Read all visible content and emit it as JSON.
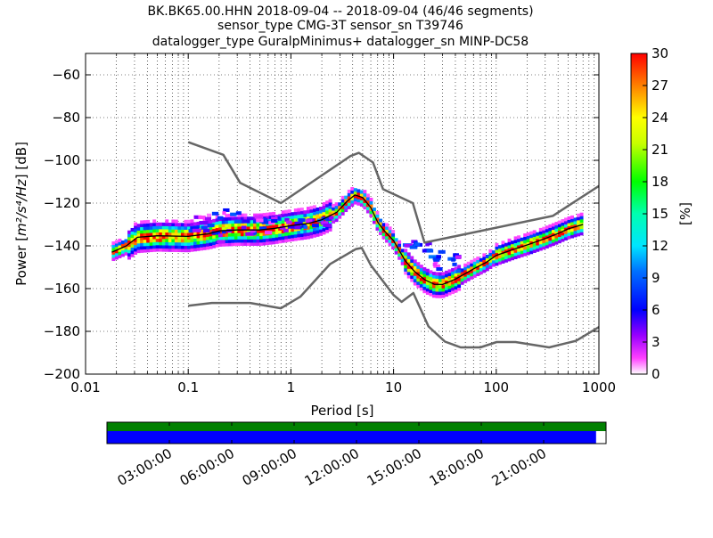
{
  "chart_data": {
    "type": "heatmap",
    "title_lines": [
      "BK.BK65.00.HHN   2018-09-04 -- 2018-09-04  (46/46 segments)",
      "sensor_type CMG-3T sensor_sn T39746",
      "datalogger_type GuralpMinimus+ datalogger_sn MINP-DC58"
    ],
    "xlabel": "Period [s]",
    "ylabel_prefix": "Power [",
    "ylabel_math": "m²/s⁴/Hz",
    "ylabel_suffix": "] [dB]",
    "x_scale": "log",
    "xlim": [
      0.01,
      1000
    ],
    "ylim": [
      -200,
      -50
    ],
    "x_ticks": [
      {
        "v": 0.01,
        "label": "0.01"
      },
      {
        "v": 0.1,
        "label": "0.1"
      },
      {
        "v": 1,
        "label": "1"
      },
      {
        "v": 10,
        "label": "10"
      },
      {
        "v": 100,
        "label": "100"
      },
      {
        "v": 1000,
        "label": "1000"
      }
    ],
    "y_ticks": [
      {
        "v": -60,
        "label": "−60"
      },
      {
        "v": -80,
        "label": "−80"
      },
      {
        "v": -100,
        "label": "−100"
      },
      {
        "v": -120,
        "label": "−120"
      },
      {
        "v": -140,
        "label": "−140"
      },
      {
        "v": -160,
        "label": "−160"
      },
      {
        "v": -180,
        "label": "−180"
      },
      {
        "v": -200,
        "label": "−200"
      }
    ],
    "grid": true,
    "colorbar": {
      "label": "[%]",
      "range": [
        0,
        30
      ],
      "ticks": [
        {
          "v": 0,
          "label": "0"
        },
        {
          "v": 3,
          "label": "3"
        },
        {
          "v": 6,
          "label": "6"
        },
        {
          "v": 9,
          "label": "9"
        },
        {
          "v": 12,
          "label": "12"
        },
        {
          "v": 15,
          "label": "15"
        },
        {
          "v": 18,
          "label": "18"
        },
        {
          "v": 21,
          "label": "21"
        },
        {
          "v": 24,
          "label": "24"
        },
        {
          "v": 27,
          "label": "27"
        },
        {
          "v": 30,
          "label": "30"
        }
      ]
    },
    "noise_models": [
      {
        "points": [
          [
            0.1,
            -91.5
          ],
          [
            0.22,
            -97.4
          ],
          [
            0.32,
            -110.5
          ],
          [
            0.8,
            -120
          ],
          [
            3.8,
            -98
          ],
          [
            4.6,
            -96.5
          ],
          [
            6.3,
            -101
          ],
          [
            7.9,
            -113.5
          ],
          [
            15.4,
            -120
          ],
          [
            20,
            -138.5
          ],
          [
            354.8,
            -126
          ],
          [
            1000,
            -112
          ]
        ]
      },
      {
        "points": [
          [
            0.1,
            -168
          ],
          [
            0.17,
            -166.7
          ],
          [
            0.4,
            -166.7
          ],
          [
            0.8,
            -169.2
          ],
          [
            1.24,
            -163.7
          ],
          [
            2.4,
            -148.6
          ],
          [
            4.3,
            -141.5
          ],
          [
            4.9,
            -141
          ],
          [
            6,
            -149
          ],
          [
            10,
            -163
          ],
          [
            12,
            -166.2
          ],
          [
            15.6,
            -162.1
          ],
          [
            21.9,
            -177.7
          ],
          [
            31.6,
            -184.8
          ],
          [
            45,
            -187.5
          ],
          [
            70,
            -187.5
          ],
          [
            101,
            -185
          ],
          [
            154,
            -185
          ],
          [
            328,
            -187.5
          ],
          [
            600,
            -184.4
          ],
          [
            1000,
            -178
          ]
        ]
      }
    ],
    "mode_curve": {
      "points": [
        [
          0.018,
          -143
        ],
        [
          0.025,
          -140
        ],
        [
          0.032,
          -136
        ],
        [
          0.05,
          -135.3
        ],
        [
          0.1,
          -135.6
        ],
        [
          0.16,
          -134.3
        ],
        [
          0.2,
          -133
        ],
        [
          0.3,
          -132.6
        ],
        [
          0.5,
          -132.6
        ],
        [
          0.7,
          -131.8
        ],
        [
          1,
          -130.6
        ],
        [
          1.5,
          -129.4
        ],
        [
          2,
          -127.8
        ],
        [
          2.8,
          -124.3
        ],
        [
          3.5,
          -119.3
        ],
        [
          4.2,
          -116.2
        ],
        [
          5,
          -117.4
        ],
        [
          6,
          -122.1
        ],
        [
          7,
          -128.9
        ],
        [
          8,
          -132.6
        ],
        [
          10,
          -137.6
        ],
        [
          13,
          -147
        ],
        [
          16,
          -152
        ],
        [
          20,
          -155.8
        ],
        [
          25,
          -158
        ],
        [
          30,
          -158.1
        ],
        [
          40,
          -155.6
        ],
        [
          60,
          -150.8
        ],
        [
          80,
          -147.7
        ],
        [
          100,
          -144.5
        ],
        [
          150,
          -141.5
        ],
        [
          200,
          -139.6
        ],
        [
          300,
          -136.6
        ],
        [
          400,
          -134.2
        ],
        [
          500,
          -132.1
        ],
        [
          700,
          -130
        ]
      ]
    },
    "segment_bands": [
      {
        "x0": 0.1,
        "x1": 0.13,
        "db": [
          -126,
          -133
        ]
      },
      {
        "x0": 0.13,
        "x1": 0.19,
        "db": [
          -124,
          -135
        ]
      },
      {
        "x0": 0.19,
        "x1": 0.28,
        "db": [
          -122,
          -139
        ]
      },
      {
        "x0": 0.28,
        "x1": 0.42,
        "db": [
          -124,
          -136
        ]
      },
      {
        "x0": 0.42,
        "x1": 0.63,
        "db": [
          -125,
          -134
        ]
      },
      {
        "x0": 0.63,
        "x1": 1.0,
        "db": [
          -126,
          -133
        ]
      },
      {
        "x0": 1.0,
        "x1": 1.58,
        "db": [
          -127,
          -132
        ]
      },
      {
        "x0": 1.58,
        "x1": 2.5,
        "db": [
          -126,
          -131
        ]
      },
      {
        "x0": 12,
        "x1": 16,
        "db": [
          -137,
          -141
        ]
      },
      {
        "x0": 16,
        "x1": 22,
        "db": [
          -138,
          -146
        ]
      },
      {
        "x0": 22,
        "x1": 30,
        "db": [
          -142,
          -151
        ]
      },
      {
        "x0": 30,
        "x1": 45,
        "db": [
          -144,
          -152
        ]
      }
    ]
  },
  "timeline": {
    "time_labels": [
      "03:00:00",
      "06:00:00",
      "09:00:00",
      "12:00:00",
      "15:00:00",
      "18:00:00",
      "21:00:00"
    ],
    "time_hours": [
      3,
      6,
      9,
      12,
      15,
      18,
      21
    ],
    "span_hours": 24,
    "data_coverage_end_fraction": 0.98,
    "top_bar_color": "#008000",
    "data_bar_color": "#0000ff"
  },
  "colors": {
    "noise_model": "#666666",
    "mode": "#000000"
  }
}
